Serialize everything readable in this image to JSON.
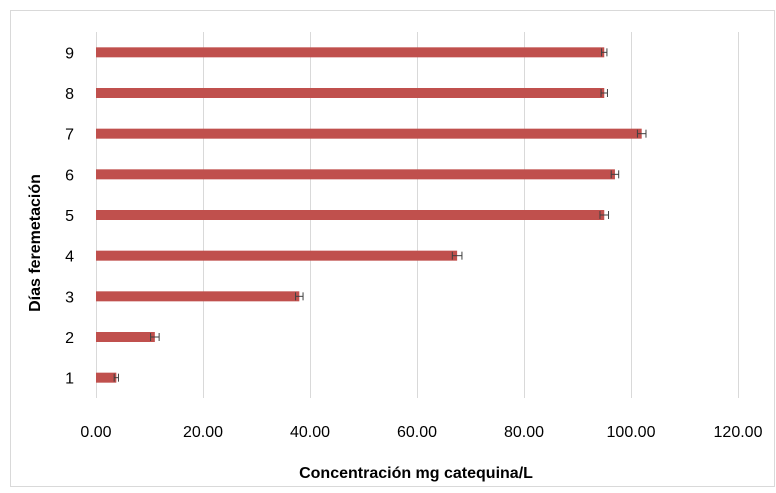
{
  "chart_data": {
    "type": "bar",
    "orientation": "horizontal",
    "categories": [
      "1",
      "2",
      "3",
      "4",
      "5",
      "6",
      "7",
      "8",
      "9"
    ],
    "values": [
      3.8,
      11.0,
      38.0,
      67.5,
      95.0,
      97.0,
      102.0,
      95.0,
      95.0
    ],
    "errors": [
      0.4,
      0.8,
      0.7,
      0.9,
      0.8,
      0.7,
      0.8,
      0.6,
      0.5
    ],
    "xlabel": "Concentración mg catequina/L",
    "ylabel": "Días feremetación",
    "xlim": [
      0,
      120
    ],
    "xticks": [
      "0.00",
      "20.00",
      "40.00",
      "60.00",
      "80.00",
      "100.00",
      "120.00"
    ],
    "grid": "vertical",
    "legend": "none",
    "bar_color": "#c0504d",
    "error_color": "#404040",
    "grid_color": "#d9d9d9"
  }
}
